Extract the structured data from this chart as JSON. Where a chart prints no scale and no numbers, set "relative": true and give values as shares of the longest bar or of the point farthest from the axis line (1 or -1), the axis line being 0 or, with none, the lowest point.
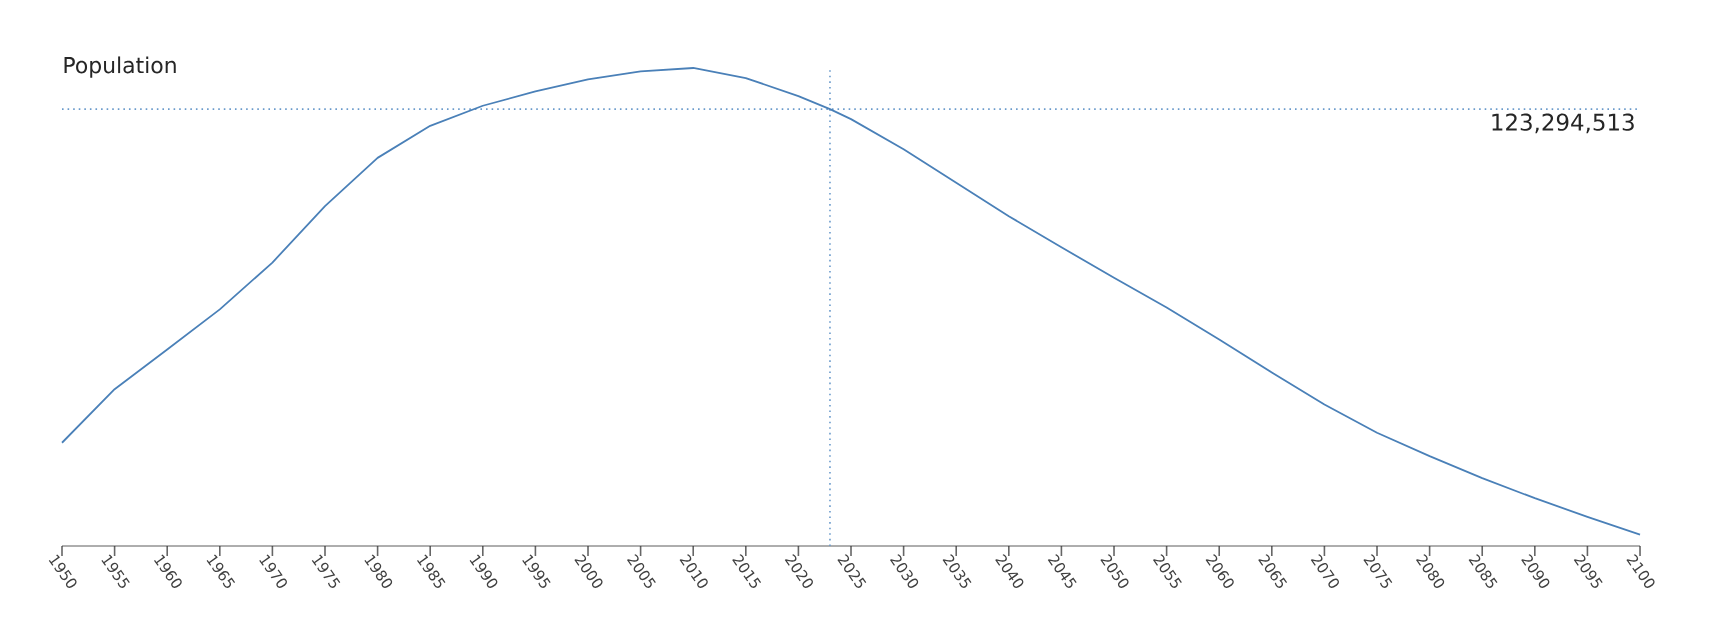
{
  "chart_data": {
    "type": "line",
    "title": "Population",
    "relative": true,
    "color": "#4a80b8",
    "x": [
      1950,
      1955,
      1960,
      1965,
      1970,
      1975,
      1980,
      1985,
      1990,
      1995,
      2000,
      2005,
      2010,
      2015,
      2020,
      2023,
      2025,
      2030,
      2035,
      2040,
      2045,
      2050,
      2055,
      2060,
      2065,
      2070,
      2075,
      2080,
      2085,
      2090,
      2095,
      2100
    ],
    "values": [
      0.216,
      0.328,
      0.411,
      0.495,
      0.593,
      0.711,
      0.812,
      0.879,
      0.921,
      0.951,
      0.976,
      0.993,
      1.0,
      0.979,
      0.941,
      0.914,
      0.893,
      0.83,
      0.76,
      0.69,
      0.625,
      0.561,
      0.499,
      0.432,
      0.363,
      0.296,
      0.237,
      0.188,
      0.142,
      0.1,
      0.061,
      0.024
    ],
    "xlim": [
      1950,
      2100
    ],
    "xticks": [
      1950,
      1955,
      1960,
      1965,
      1970,
      1975,
      1980,
      1985,
      1990,
      1995,
      2000,
      2005,
      2010,
      2015,
      2020,
      2025,
      2030,
      2035,
      2040,
      2045,
      2050,
      2055,
      2060,
      2065,
      2070,
      2075,
      2080,
      2085,
      2090,
      2095,
      2100
    ],
    "ref_lines": [
      {
        "axis": "x",
        "value": 2023,
        "color": "#6a9acb",
        "line_style": "dotted"
      },
      {
        "axis": "y",
        "value": 0.914,
        "color": "#6a9acb",
        "line_style": "dotted"
      }
    ],
    "annotations": [
      "123,294,513"
    ]
  }
}
